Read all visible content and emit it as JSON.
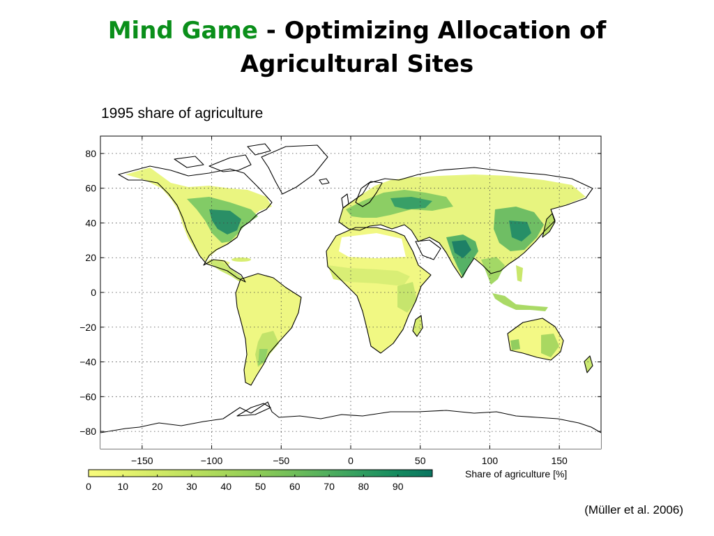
{
  "slide": {
    "title_accent": "Mind Game",
    "title_rest_line1": " - Optimizing Allocation of",
    "title_line2": "Agricultural Sites",
    "citation": "(Müller et al. 2006)"
  },
  "map": {
    "title": "1995 share of agriculture",
    "projection": "plate carrée (longitude × latitude)",
    "lon_range": [
      -180,
      180
    ],
    "lat_range": [
      -90,
      90
    ],
    "x_ticks": [
      "−150",
      "−100",
      "−50",
      "0",
      "50",
      "100",
      "150"
    ],
    "x_tick_values": [
      -150,
      -100,
      -50,
      0,
      50,
      100,
      150
    ],
    "y_ticks": [
      "80",
      "60",
      "40",
      "20",
      "0",
      "−20",
      "−40",
      "−60",
      "−80"
    ],
    "y_tick_values": [
      80,
      60,
      40,
      20,
      0,
      -20,
      -40,
      -60,
      -80
    ],
    "grid": "dotted",
    "colors": {
      "low": "#f7f97a",
      "mid": "#b9df5e",
      "high": "#2f9e5f",
      "max": "#0b6e5a",
      "coast": "#000000"
    }
  },
  "legend": {
    "label": "Share of agriculture [%]",
    "ticks": [
      "0",
      "10",
      "20",
      "30",
      "40",
      "50",
      "60",
      "70",
      "80",
      "90"
    ],
    "tick_values": [
      0,
      10,
      20,
      30,
      40,
      50,
      60,
      70,
      80,
      90
    ],
    "stops": [
      "#f8fb7c",
      "#e8f470",
      "#d2ea66",
      "#bce05e",
      "#a5d659",
      "#8ccb57",
      "#6fbd5a",
      "#4fae5e",
      "#2f9c60",
      "#148a5f",
      "#0b7460"
    ]
  }
}
